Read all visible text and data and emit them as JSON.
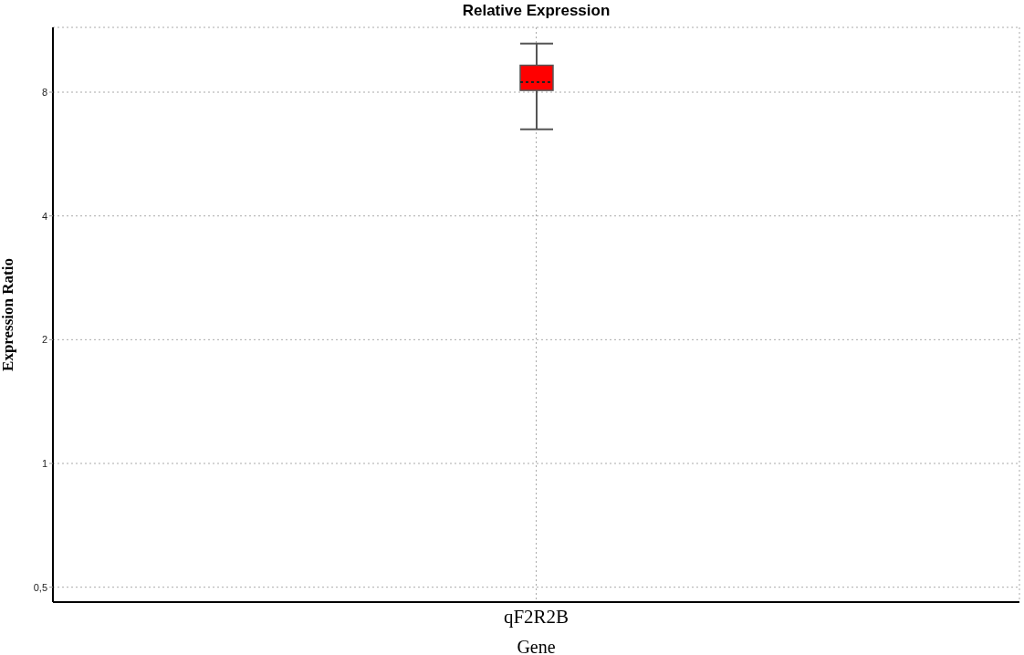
{
  "chart_data": {
    "type": "box",
    "title": "Relative Expression",
    "xlabel": "Gene",
    "ylabel": "Expression Ratio",
    "categories": [
      "qF2R2B"
    ],
    "series": [
      {
        "color": "#ff0000",
        "boxes": [
          {
            "low": 6.5,
            "q1": 8.08,
            "median": 8.46,
            "q3": 9.3,
            "high": 10.5
          }
        ]
      }
    ],
    "ylim": [
      0.46,
      11.5
    ],
    "yticks": [
      {
        "value": 0.5,
        "label": "0,5"
      },
      1,
      2,
      4,
      8
    ],
    "log": true,
    "grid": true
  }
}
